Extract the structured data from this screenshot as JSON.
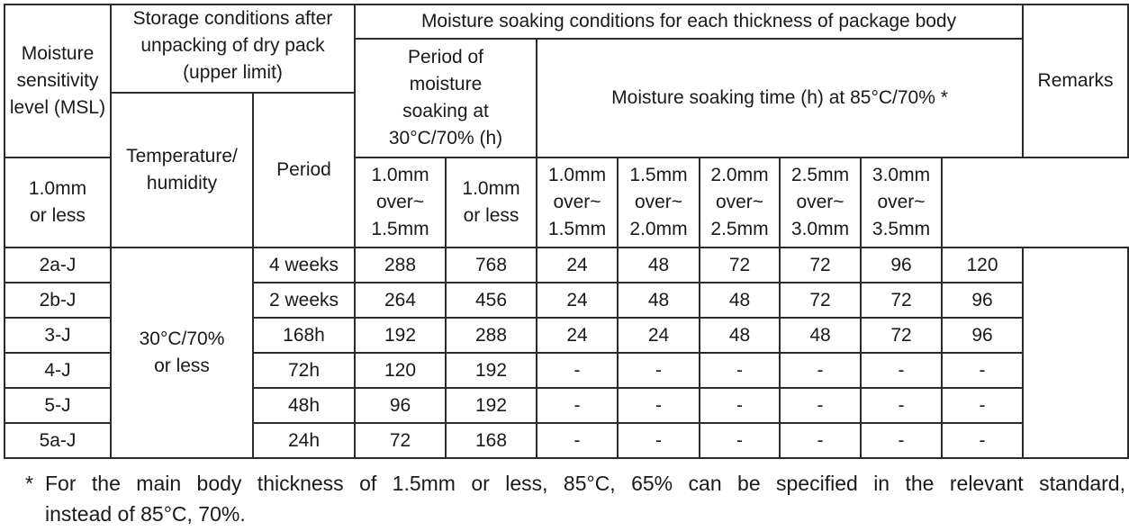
{
  "table": {
    "headers": {
      "msl": "Moisture sensitivity level (MSL)",
      "storage_group": "Storage conditions after unpacking of dry pack (upper limit)",
      "soaking_group": "Moisture soaking conditions for each thickness of package body",
      "remarks": "Remarks",
      "temp_humidity": "Temperature/\nhumidity",
      "period": "Period",
      "period_soaking_30": "Period of moisture soaking at 30°C/70% (h)",
      "soaking_time_85": "Moisture soaking time (h) at 85°C/70% *",
      "thickness_30": [
        "1.0mm\nor less",
        "1.0mm\nover~\n1.5mm"
      ],
      "thickness_85": [
        "1.0mm\nor less",
        "1.0mm\nover~\n1.5mm",
        "1.5mm\nover~\n2.0mm",
        "2.0mm\nover~\n2.5mm",
        "2.5mm\nover~\n3.0mm",
        "3.0mm\nover~\n3.5mm"
      ]
    },
    "storage_condition": "30°C/70%\nor less",
    "rows": [
      {
        "level": "2a-J",
        "period": "4 weeks",
        "soak30": [
          "288",
          "768"
        ],
        "soak85": [
          "24",
          "48",
          "72",
          "72",
          "96",
          "120"
        ]
      },
      {
        "level": "2b-J",
        "period": "2 weeks",
        "soak30": [
          "264",
          "456"
        ],
        "soak85": [
          "24",
          "48",
          "48",
          "72",
          "72",
          "96"
        ]
      },
      {
        "level": "3-J",
        "period": "168h",
        "soak30": [
          "192",
          "288"
        ],
        "soak85": [
          "24",
          "24",
          "48",
          "48",
          "72",
          "96"
        ]
      },
      {
        "level": "4-J",
        "period": "72h",
        "soak30": [
          "120",
          "192"
        ],
        "soak85": [
          "-",
          "-",
          "-",
          "-",
          "-",
          "-"
        ]
      },
      {
        "level": "5-J",
        "period": "48h",
        "soak30": [
          "96",
          "192"
        ],
        "soak85": [
          "-",
          "-",
          "-",
          "-",
          "-",
          "-"
        ]
      },
      {
        "level": "5a-J",
        "period": "24h",
        "soak30": [
          "72",
          "168"
        ],
        "soak85": [
          "-",
          "-",
          "-",
          "-",
          "-",
          "-"
        ]
      }
    ]
  },
  "footnote": {
    "marker": "*",
    "line1": "For the main body thickness of 1.5mm or less, 85°C, 65% can be specified in the relevant standard,",
    "line2": "instead of 85°C, 70%."
  }
}
